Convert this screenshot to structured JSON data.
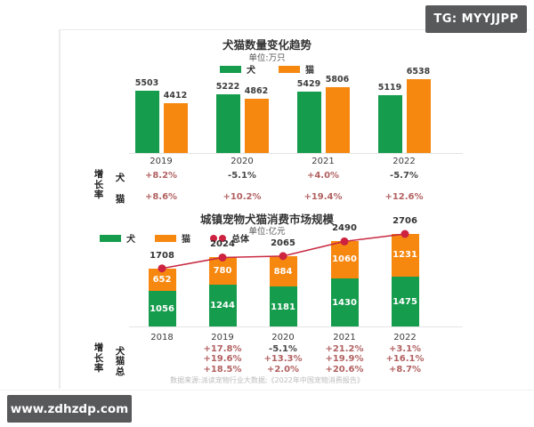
{
  "badges": {
    "tg": "TG: MYYJJPP",
    "watermark": "www.zdhzdp.com"
  },
  "colors": {
    "dog": "#169c4d",
    "cat": "#f6870f",
    "total_line": "#c92a42",
    "total_dot": "#cd2340",
    "positive_text": "#b26161",
    "negative_text": "#474747"
  },
  "chart_data": [
    {
      "type": "bar",
      "title": "犬猫数量变化趋势",
      "subtitle": "单位:万只",
      "ylabel": "万只",
      "legend_position": "top-center",
      "categories": [
        "2019",
        "2020",
        "2021",
        "2022"
      ],
      "series": [
        {
          "name": "犬",
          "key": "dog",
          "color": "#169c4d",
          "values": [
            5503,
            5222,
            5429,
            5119
          ]
        },
        {
          "name": "猫",
          "key": "cat",
          "color": "#f6870f",
          "values": [
            4412,
            4862,
            5806,
            6538
          ]
        }
      ],
      "growth": {
        "label": "增长率",
        "rows": [
          {
            "name": "犬",
            "values": [
              "+8.2%",
              "-5.1%",
              "+4.0%",
              "-5.7%"
            ]
          },
          {
            "name": "猫",
            "values": [
              "+8.6%",
              "+10.2%",
              "+19.4%",
              "+12.6%"
            ]
          }
        ]
      }
    },
    {
      "type": "area",
      "subtype": "stacked-bar-with-total-line",
      "title": "城镇宠物犬猫消费市场规模",
      "subtitle": "单位:亿元",
      "ylabel": "亿元",
      "legend_position": "top-left",
      "categories": [
        "2018",
        "2019",
        "2020",
        "2021",
        "2022"
      ],
      "series": [
        {
          "name": "犬",
          "key": "dog",
          "color": "#169c4d",
          "values": [
            1056,
            1244,
            1181,
            1430,
            1475
          ]
        },
        {
          "name": "猫",
          "key": "cat",
          "color": "#f6870f",
          "values": [
            652,
            780,
            884,
            1060,
            1231
          ]
        }
      ],
      "totals": {
        "name": "总体",
        "values": [
          1708,
          2024,
          2065,
          2490,
          2706
        ]
      },
      "growth": {
        "label": "增长率",
        "rows": [
          {
            "name": "犬",
            "values": [
              "+17.8%",
              "-5.1%",
              "+21.2%",
              "+3.1%"
            ]
          },
          {
            "name": "猫",
            "values": [
              "+19.6%",
              "+13.3%",
              "+19.9%",
              "+16.1%"
            ]
          },
          {
            "name": "总",
            "values": [
              "+18.5%",
              "+2.0%",
              "+20.6%",
              "+8.7%"
            ]
          }
        ]
      },
      "source": "数据来源:派读宠物行业大数据;《2022年中国宠物消费报告》"
    }
  ]
}
